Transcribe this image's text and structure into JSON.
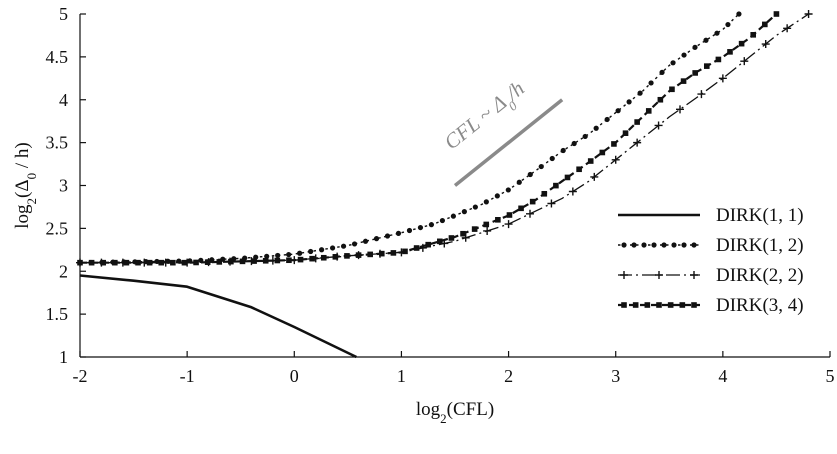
{
  "chart_data": {
    "type": "line",
    "title": "",
    "xlabel": "log2(CFL)",
    "ylabel": "log2(Δ0 / h)",
    "xlim": [
      -2,
      5
    ],
    "ylim": [
      1,
      5
    ],
    "grid": false,
    "legend_position": "right",
    "x_ticks": [
      -2,
      -1,
      0,
      1,
      2,
      3,
      4,
      5
    ],
    "y_ticks": [
      1,
      1.5,
      2,
      2.5,
      3,
      3.5,
      4,
      4.5,
      5
    ],
    "x_tick_labels": [
      "-2",
      "-1",
      "0",
      "1",
      "2",
      "3",
      "4",
      "5"
    ],
    "y_tick_labels": [
      "1",
      "1.5",
      "2",
      "2.5",
      "3",
      "3.5",
      "4",
      "4.5",
      "5"
    ],
    "annotation": {
      "text": "CFL ~ Δ0/h",
      "line_x": [
        1.5,
        2.5
      ],
      "line_y": [
        3.0,
        4.0
      ]
    },
    "series": [
      {
        "name": "DIRK(1, 1)",
        "style": "solid",
        "x": [
          -2,
          -1.5,
          -1,
          -0.4,
          0,
          0.58
        ],
        "y": [
          1.95,
          1.89,
          1.82,
          1.58,
          1.35,
          1.0
        ]
      },
      {
        "name": "DIRK(1, 2)",
        "style": "dotted-circle",
        "x": [
          -2,
          -1,
          -0.5,
          0,
          0.5,
          1,
          1.3,
          1.5,
          1.75,
          2,
          2.25,
          2.5,
          2.75,
          3,
          3.25,
          3.5,
          3.75,
          4,
          4.15
        ],
        "y": [
          2.1,
          2.12,
          2.15,
          2.2,
          2.3,
          2.45,
          2.55,
          2.65,
          2.78,
          2.95,
          3.17,
          3.4,
          3.6,
          3.85,
          4.1,
          4.4,
          4.62,
          4.82,
          5.0
        ]
      },
      {
        "name": "DIRK(2, 2)",
        "style": "dashdot-plus",
        "x": [
          -2,
          -1,
          0,
          0.5,
          1,
          1.5,
          2,
          2.25,
          2.5,
          2.75,
          3,
          3.25,
          3.5,
          3.75,
          4,
          4.25,
          4.5,
          4.8
        ],
        "y": [
          2.1,
          2.1,
          2.13,
          2.18,
          2.22,
          2.35,
          2.55,
          2.7,
          2.85,
          3.05,
          3.3,
          3.55,
          3.8,
          4.02,
          4.25,
          4.5,
          4.75,
          5.0
        ]
      },
      {
        "name": "DIRK(3, 4)",
        "style": "dashed-square",
        "x": [
          -2,
          -1,
          0,
          0.5,
          1,
          1.5,
          2,
          2.25,
          2.5,
          2.75,
          3,
          3.25,
          3.5,
          3.75,
          4,
          4.25,
          4.5
        ],
        "y": [
          2.1,
          2.1,
          2.13,
          2.18,
          2.22,
          2.4,
          2.65,
          2.83,
          3.05,
          3.27,
          3.5,
          3.8,
          4.1,
          4.32,
          4.5,
          4.72,
          5.0
        ]
      }
    ]
  }
}
